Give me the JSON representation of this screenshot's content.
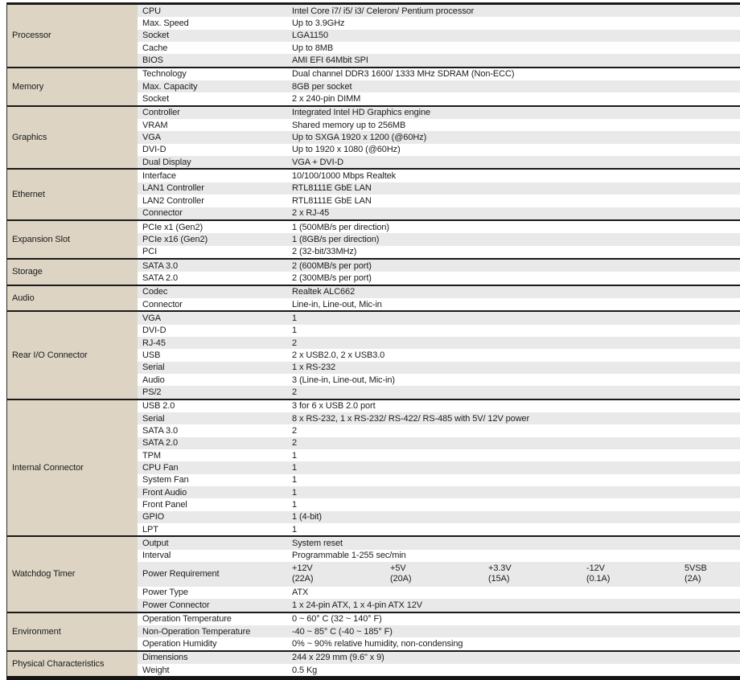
{
  "colors": {
    "category_bg": "#ddd4c4",
    "stripe_bg": "#e9e9e9",
    "border_black": "#191919",
    "text": "#1c1c1c"
  },
  "table": {
    "sections": [
      {
        "category": "Processor",
        "rows": [
          {
            "item": "CPU",
            "value": "Intel Core i7/ i5/ i3/ Celeron/ Pentium processor"
          },
          {
            "item": "Max. Speed",
            "value": "Up to 3.9GHz"
          },
          {
            "item": "Socket",
            "value": "LGA1150"
          },
          {
            "item": "Cache",
            "value": "Up to 8MB"
          },
          {
            "item": "BIOS",
            "value": "AMI EFI 64Mbit SPI"
          }
        ]
      },
      {
        "category": "Memory",
        "rows": [
          {
            "item": "Technology",
            "value": "Dual channel DDR3 1600/ 1333 MHz SDRAM (Non-ECC)"
          },
          {
            "item": "Max. Capacity",
            "value": "8GB per socket"
          },
          {
            "item": "Socket",
            "value": "2 x 240-pin DIMM"
          }
        ]
      },
      {
        "category": "Graphics",
        "rows": [
          {
            "item": "Controller",
            "value": "Integrated Intel HD Graphics engine"
          },
          {
            "item": "VRAM",
            "value": "Shared memory up to 256MB"
          },
          {
            "item": "VGA",
            "value": "Up to SXGA 1920 x 1200 (@60Hz)"
          },
          {
            "item": "DVI-D",
            "value": "Up to 1920 x 1080 (@60Hz)"
          },
          {
            "item": "Dual Display",
            "value": "VGA + DVI-D"
          }
        ]
      },
      {
        "category": "Ethernet",
        "rows": [
          {
            "item": "Interface",
            "value": "10/100/1000 Mbps Realtek"
          },
          {
            "item": "LAN1 Controller",
            "value": "RTL8111E GbE LAN"
          },
          {
            "item": "LAN2 Controller",
            "value": "RTL8111E GbE LAN"
          },
          {
            "item": "Connector",
            "value": "2 x RJ-45"
          }
        ]
      },
      {
        "category": "Expansion Slot",
        "rows": [
          {
            "item": "PCIe x1 (Gen2)",
            "value": "1 (500MB/s per direction)"
          },
          {
            "item": "PCIe x16 (Gen2)",
            "value": "1 (8GB/s per direction)"
          },
          {
            "item": "PCI",
            "value": "2 (32-bit/33MHz)"
          }
        ]
      },
      {
        "category": "Storage",
        "rows": [
          {
            "item": "SATA 3.0",
            "value": "2 (600MB/s per port)"
          },
          {
            "item": "SATA 2.0",
            "value": "2 (300MB/s per port)"
          }
        ]
      },
      {
        "category": "Audio",
        "rows": [
          {
            "item": "Codec",
            "value": "Realtek ALC662"
          },
          {
            "item": "Connector",
            "value": "Line-in, Line-out, Mic-in"
          }
        ]
      },
      {
        "category": "Rear I/O Connector",
        "rows": [
          {
            "item": "VGA",
            "value": "1"
          },
          {
            "item": "DVI-D",
            "value": "1"
          },
          {
            "item": "RJ-45",
            "value": "2"
          },
          {
            "item": "USB",
            "value": "2 x USB2.0, 2 x USB3.0"
          },
          {
            "item": "Serial",
            "value": "1 x RS-232"
          },
          {
            "item": "Audio",
            "value": "3 (Line-in, Line-out, Mic-in)"
          },
          {
            "item": "PS/2",
            "value": "2"
          }
        ]
      },
      {
        "category": "Internal Connector",
        "rows": [
          {
            "item": "USB 2.0",
            "value": "3 for 6 x USB 2.0 port"
          },
          {
            "item": "Serial",
            "value": "8 x RS-232, 1 x RS-232/ RS-422/ RS-485 with 5V/ 12V power"
          },
          {
            "item": "SATA 3.0",
            "value": "2"
          },
          {
            "item": "SATA 2.0",
            "value": "2"
          },
          {
            "item": "TPM",
            "value": "1"
          },
          {
            "item": "CPU Fan",
            "value": "1"
          },
          {
            "item": "System Fan",
            "value": "1"
          },
          {
            "item": "Front Audio",
            "value": "1"
          },
          {
            "item": "Front Panel",
            "value": "1"
          },
          {
            "item": "GPIO",
            "value": "1 (4-bit)"
          },
          {
            "item": "LPT",
            "value": "1"
          }
        ]
      },
      {
        "category": "Watchdog Timer",
        "rows": [
          {
            "item": "Output",
            "value": "System reset"
          },
          {
            "item": "Interval",
            "value": "Programmable 1-255 sec/min"
          },
          {
            "item": "Power Requirement",
            "power_columns": [
              {
                "volt": "+12V",
                "amp": "(22A)"
              },
              {
                "volt": "+5V",
                "amp": "(20A)"
              },
              {
                "volt": "+3.3V",
                "amp": "(15A)"
              },
              {
                "volt": "-12V",
                "amp": "(0.1A)"
              },
              {
                "volt": "5VSB",
                "amp": "(2A)"
              }
            ]
          },
          {
            "item": "Power Type",
            "value": "ATX"
          },
          {
            "item": "Power Connector",
            "value": "1 x 24-pin ATX, 1 x 4-pin ATX 12V"
          }
        ]
      },
      {
        "category": "Environment",
        "rows": [
          {
            "item": "Operation Temperature",
            "value": "0 ~ 60° C (32 ~ 140° F)"
          },
          {
            "item": "Non-Operation Temperature",
            "value": "-40 ~ 85° C (-40 ~ 185° F)"
          },
          {
            "item": "Operation Humidity",
            "value": "0% ~ 90% relative humidity, non-condensing"
          }
        ]
      },
      {
        "category": "Physical Characteristics",
        "rows": [
          {
            "item": "Dimensions",
            "value": "244 x 229 mm (9.6\" x 9)"
          },
          {
            "item": "Weight",
            "value": "0.5 Kg"
          }
        ]
      }
    ]
  }
}
